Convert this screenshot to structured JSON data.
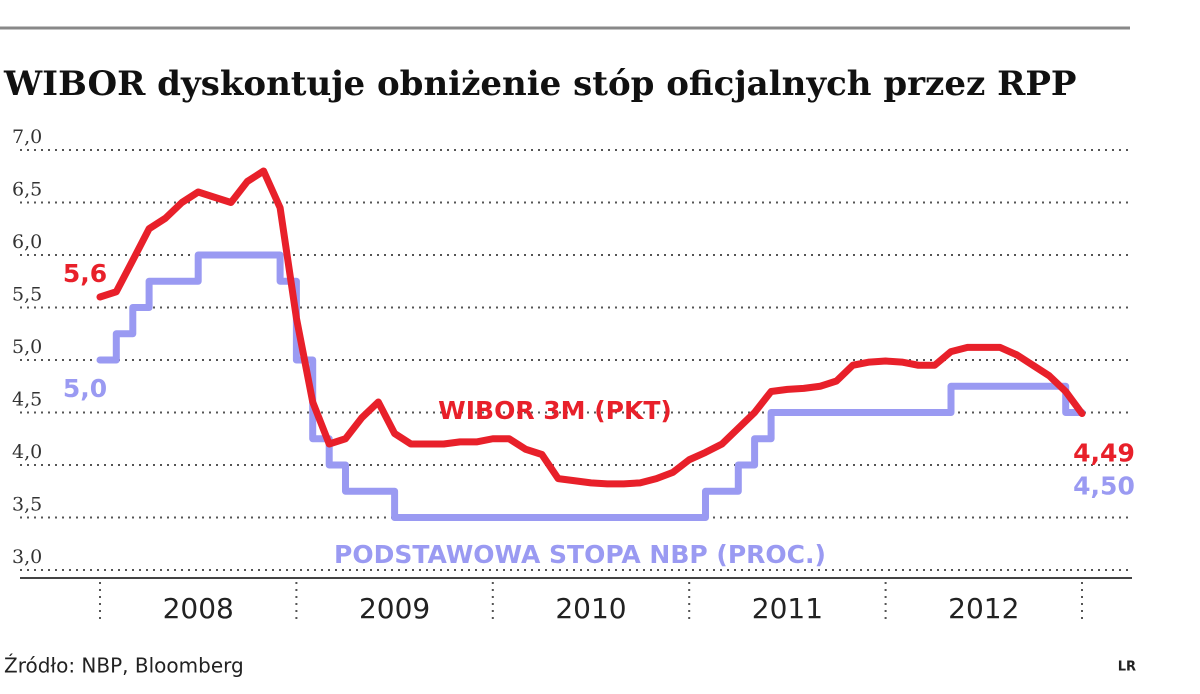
{
  "chart_data": {
    "type": "line",
    "title": "WIBOR dyskontuje obniżenie stóp oficjalnych przez RPP",
    "source": "Źródło: NBP, Bloomberg",
    "logo": "LR",
    "year_labels": [
      "2008",
      "2009",
      "2010",
      "2011",
      "2012"
    ],
    "x": [
      2008,
      2008.083,
      2008.167,
      2008.25,
      2008.333,
      2008.417,
      2008.5,
      2008.583,
      2008.667,
      2008.75,
      2008.833,
      2008.917,
      2009,
      2009.083,
      2009.167,
      2009.25,
      2009.333,
      2009.417,
      2009.5,
      2009.583,
      2009.667,
      2009.75,
      2009.833,
      2009.917,
      2010,
      2010.083,
      2010.167,
      2010.25,
      2010.333,
      2010.417,
      2010.5,
      2010.583,
      2010.667,
      2010.75,
      2010.833,
      2010.917,
      2011,
      2011.083,
      2011.167,
      2011.25,
      2011.333,
      2011.417,
      2011.5,
      2011.583,
      2011.667,
      2011.75,
      2011.833,
      2011.917,
      2012,
      2012.083,
      2012.167,
      2012.25,
      2012.333,
      2012.417,
      2012.5,
      2012.583,
      2012.667,
      2012.75,
      2012.833,
      2012.917,
      2013
    ],
    "series": [
      {
        "name": "WIBOR 3M (PKT)",
        "color": "#e8202a",
        "step": false,
        "values": [
          5.6,
          5.65,
          5.95,
          6.25,
          6.35,
          6.5,
          6.6,
          6.55,
          6.5,
          6.7,
          6.8,
          6.45,
          5.4,
          4.6,
          4.2,
          4.25,
          4.45,
          4.6,
          4.3,
          4.2,
          4.2,
          4.2,
          4.22,
          4.22,
          4.25,
          4.25,
          4.15,
          4.1,
          3.87,
          3.85,
          3.83,
          3.82,
          3.82,
          3.83,
          3.87,
          3.93,
          4.05,
          4.12,
          4.2,
          4.35,
          4.5,
          4.7,
          4.72,
          4.73,
          4.75,
          4.8,
          4.95,
          4.98,
          4.99,
          4.98,
          4.95,
          4.95,
          5.08,
          5.12,
          5.12,
          5.12,
          5.05,
          4.95,
          4.85,
          4.7,
          4.49
        ],
        "value_labels": [
          "5,6",
          null,
          null,
          null,
          null,
          null,
          null,
          null,
          null,
          null,
          null,
          null,
          null,
          null,
          null,
          null,
          null,
          null,
          null,
          null,
          null,
          null,
          null,
          null,
          null,
          null,
          null,
          null,
          null,
          null,
          null,
          null,
          null,
          null,
          null,
          null,
          null,
          null,
          null,
          null,
          null,
          null,
          null,
          null,
          null,
          null,
          null,
          null,
          null,
          null,
          null,
          null,
          null,
          null,
          null,
          null,
          null,
          null,
          null,
          null,
          "4,49"
        ]
      },
      {
        "name": "PODSTAWOWA STOPA NBP (PROC.)",
        "color": "#9a9af2",
        "step": true,
        "values": [
          5.0,
          5.25,
          5.5,
          5.75,
          5.75,
          5.75,
          6.0,
          6.0,
          6.0,
          6.0,
          6.0,
          5.75,
          5.0,
          4.25,
          4.0,
          3.75,
          3.75,
          3.75,
          3.5,
          3.5,
          3.5,
          3.5,
          3.5,
          3.5,
          3.5,
          3.5,
          3.5,
          3.5,
          3.5,
          3.5,
          3.5,
          3.5,
          3.5,
          3.5,
          3.5,
          3.5,
          3.5,
          3.75,
          3.75,
          4.0,
          4.25,
          4.5,
          4.5,
          4.5,
          4.5,
          4.5,
          4.5,
          4.5,
          4.5,
          4.5,
          4.5,
          4.5,
          4.75,
          4.75,
          4.75,
          4.75,
          4.75,
          4.75,
          4.75,
          4.5,
          4.5
        ],
        "value_labels": [
          "5,0",
          null,
          null,
          null,
          null,
          null,
          null,
          null,
          null,
          null,
          null,
          null,
          null,
          null,
          null,
          null,
          null,
          null,
          null,
          null,
          null,
          null,
          null,
          null,
          null,
          null,
          null,
          null,
          null,
          null,
          null,
          null,
          null,
          null,
          null,
          null,
          null,
          null,
          null,
          null,
          null,
          null,
          null,
          null,
          null,
          null,
          null,
          null,
          null,
          null,
          null,
          null,
          null,
          null,
          null,
          null,
          null,
          null,
          null,
          null,
          "4,50"
        ]
      }
    ],
    "xlim": [
      2008,
      2013
    ],
    "xticks": [
      2008,
      2009,
      2010,
      2011,
      2012,
      2013
    ],
    "ylim": [
      3.0,
      7.0
    ],
    "yticks": [
      {
        "value": 3.0,
        "label": "3,0"
      },
      {
        "value": 3.5,
        "label": "3,5"
      },
      {
        "value": 4.0,
        "label": "4,0"
      },
      {
        "value": 4.5,
        "label": "4,5"
      },
      {
        "value": 5.0,
        "label": "5,0"
      },
      {
        "value": 5.5,
        "label": "5,5"
      },
      {
        "value": 6.0,
        "label": "6,0"
      },
      {
        "value": 6.5,
        "label": "6,5"
      },
      {
        "value": 7.0,
        "label": "7,0"
      }
    ],
    "grid": true
  }
}
